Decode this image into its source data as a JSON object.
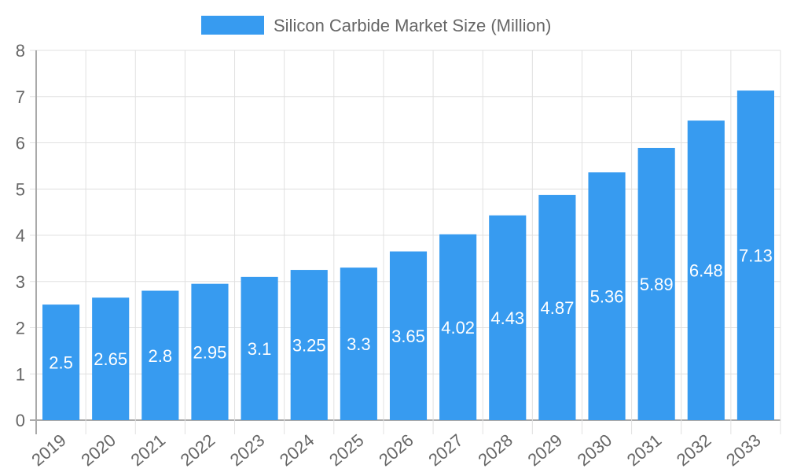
{
  "chart_data": {
    "type": "bar",
    "title": "",
    "legend": {
      "label": "Silicon Carbide Market Size (Million)",
      "placement": "top"
    },
    "categories": [
      "2019",
      "2020",
      "2021",
      "2022",
      "2023",
      "2024",
      "2025",
      "2026",
      "2027",
      "2028",
      "2029",
      "2030",
      "2031",
      "2032",
      "2033"
    ],
    "series": [
      {
        "name": "Silicon Carbide Market Size (Million)",
        "values": [
          2.5,
          2.65,
          2.8,
          2.95,
          3.1,
          3.25,
          3.3,
          3.65,
          4.02,
          4.43,
          4.87,
          5.36,
          5.89,
          6.48,
          7.13
        ]
      }
    ],
    "data_labels": [
      "2.5",
      "2.65",
      "2.8",
      "2.95",
      "3.1",
      "3.25",
      "3.3",
      "3.65",
      "4.02",
      "4.43",
      "4.87",
      "5.36",
      "5.89",
      "6.48",
      "7.13"
    ],
    "ylim": [
      0,
      8
    ],
    "yticks": [
      "0",
      "1",
      "2",
      "3",
      "4",
      "5",
      "6",
      "7",
      "8"
    ],
    "grid": true,
    "colors": {
      "bar": "#379bf0",
      "grid": "#e0e0e0",
      "axis": "#aaaaaa",
      "text": "#666666",
      "label": "#ffffff"
    }
  }
}
